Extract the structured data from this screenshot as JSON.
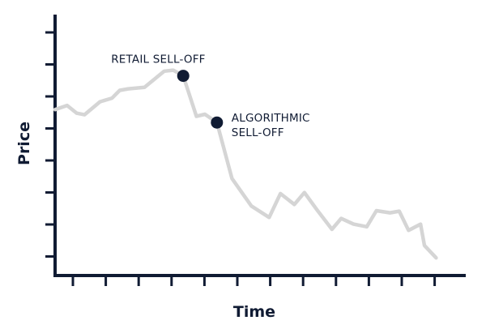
{
  "chart_data": {
    "type": "line",
    "title": "",
    "xlabel": "Time",
    "ylabel": "Price",
    "xlim": [
      0,
      100
    ],
    "ylim": [
      0,
      100
    ],
    "grid": false,
    "legend": "none",
    "colors": {
      "line": "#d5d5d5",
      "axis": "#101b33",
      "marker": "#101b33"
    },
    "series": [
      {
        "x": [
          0,
          3.1,
          5.6,
          7.6,
          11.6,
          14.7,
          16.7,
          18.9,
          23.1,
          28.2,
          30.5,
          33.1,
          36.5,
          38.7,
          41.8,
          45.7,
          50.7,
          55.3,
          58.2,
          61.8,
          64.4,
          67.5,
          71.5,
          73.9,
          77.1,
          80.5,
          83.0,
          86.5,
          88.9,
          91.3,
          94.4,
          95.4,
          98.4
        ],
        "values": [
          64.0,
          65.6,
          62.6,
          62.0,
          67.0,
          68.4,
          71.4,
          72.0,
          72.6,
          78.8,
          79.2,
          77.0,
          61.4,
          62.2,
          59.0,
          37.4,
          26.8,
          22.4,
          31.6,
          27.4,
          32.0,
          25.6,
          17.8,
          22.0,
          19.8,
          18.8,
          25.0,
          24.2,
          24.8,
          17.4,
          19.8,
          11.6,
          6.8
        ]
      }
    ],
    "annotations": [
      {
        "text": "RETAIL SELL-OFF",
        "x": 33.1,
        "y": 77.0
      },
      {
        "text": "ALGORITHMIC\nSELL-OFF",
        "x": 41.8,
        "y": 59.0
      }
    ],
    "y_tick_count": 8,
    "x_tick_count": 12
  }
}
